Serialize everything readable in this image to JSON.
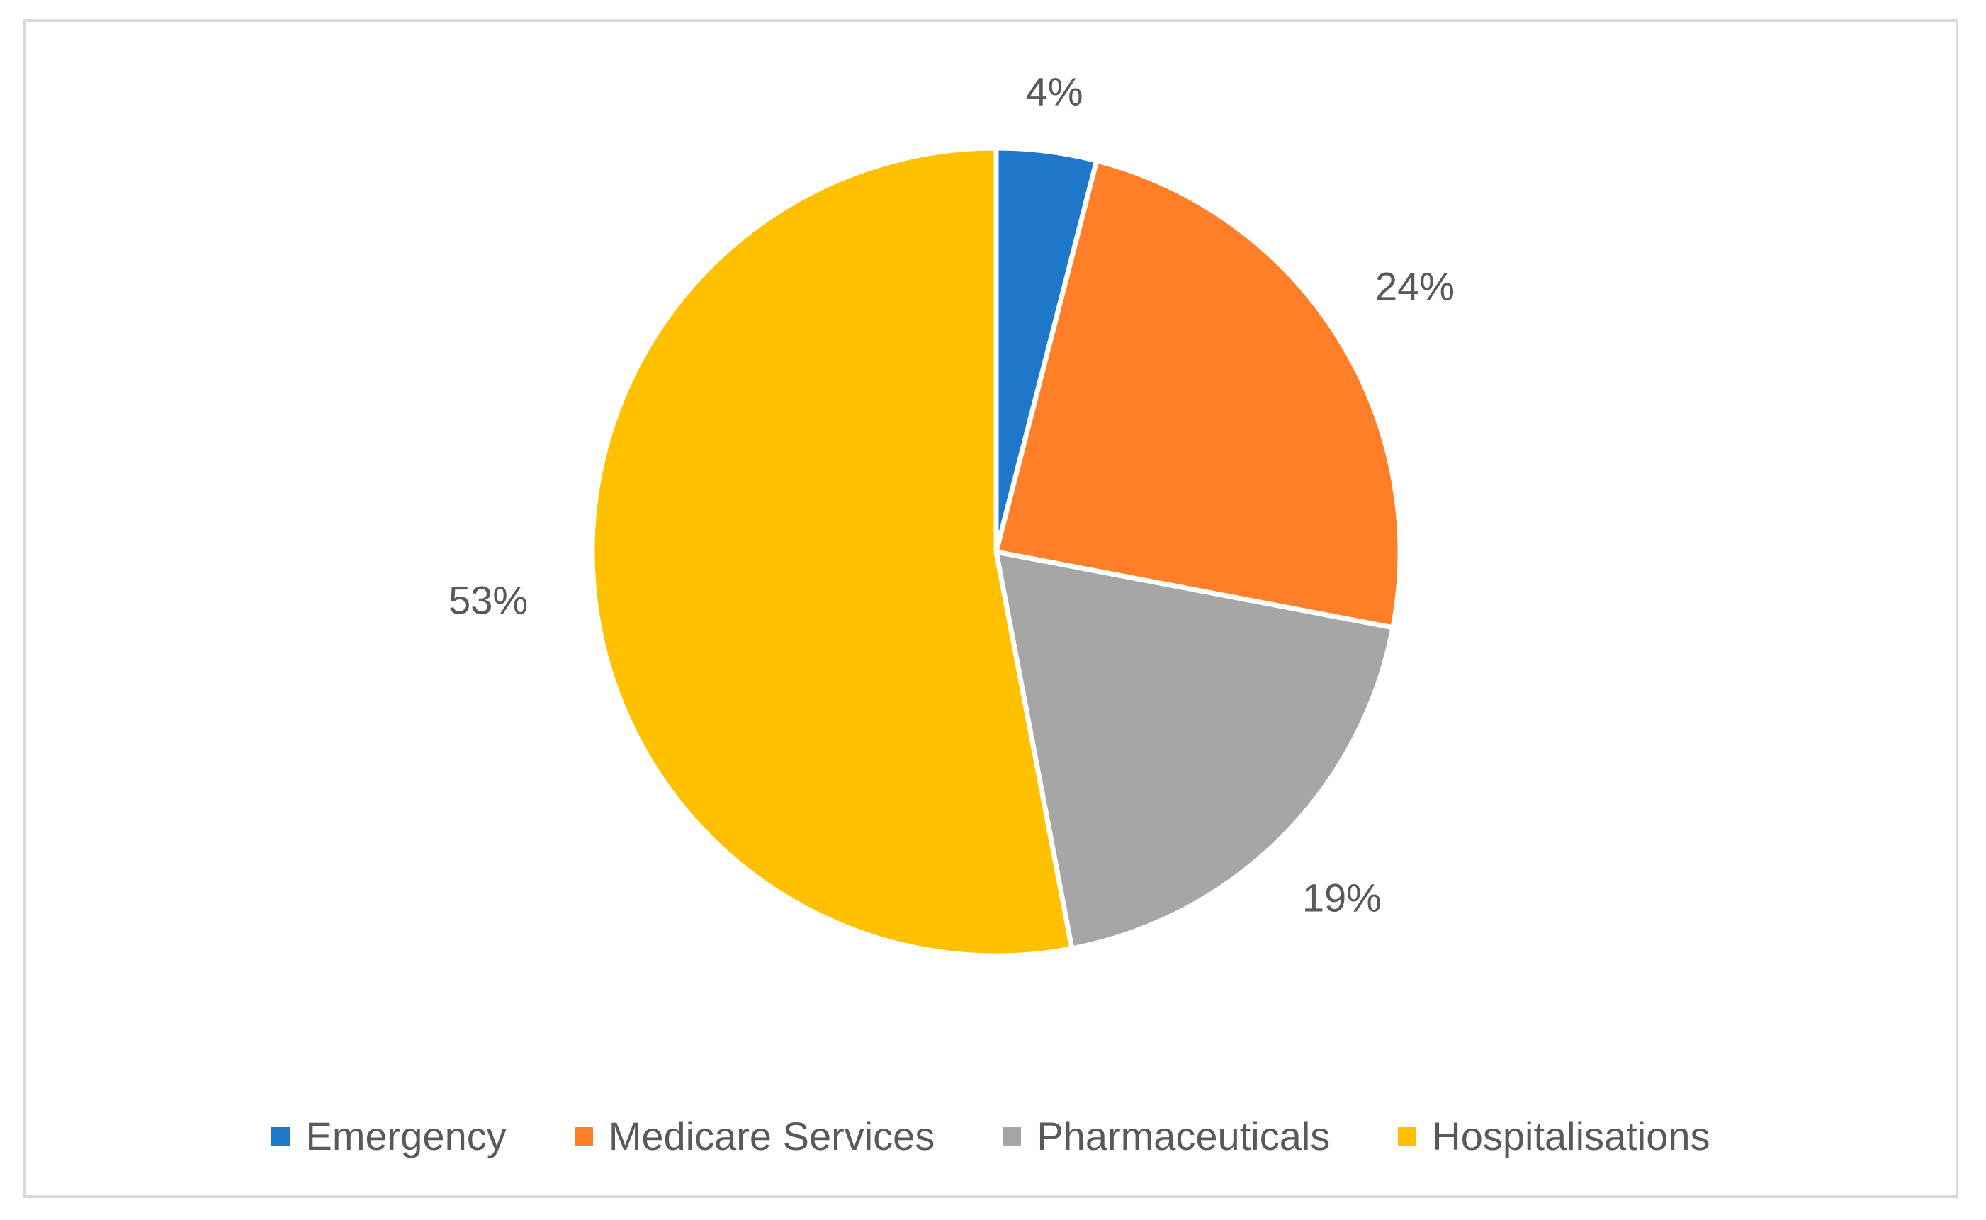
{
  "chart_data": {
    "type": "pie",
    "title": "",
    "categories": [
      "Emergency",
      "Medicare Services",
      "Pharmaceuticals",
      "Hospitalisations"
    ],
    "values": [
      4,
      24,
      19,
      53
    ],
    "labels": [
      "4%",
      "24%",
      "19%",
      "53%"
    ],
    "colors": [
      "#1f77c9",
      "#fe7f27",
      "#a6a6a6",
      "#ffc000"
    ],
    "legend_position": "bottom",
    "start_angle": "top, clockwise"
  }
}
